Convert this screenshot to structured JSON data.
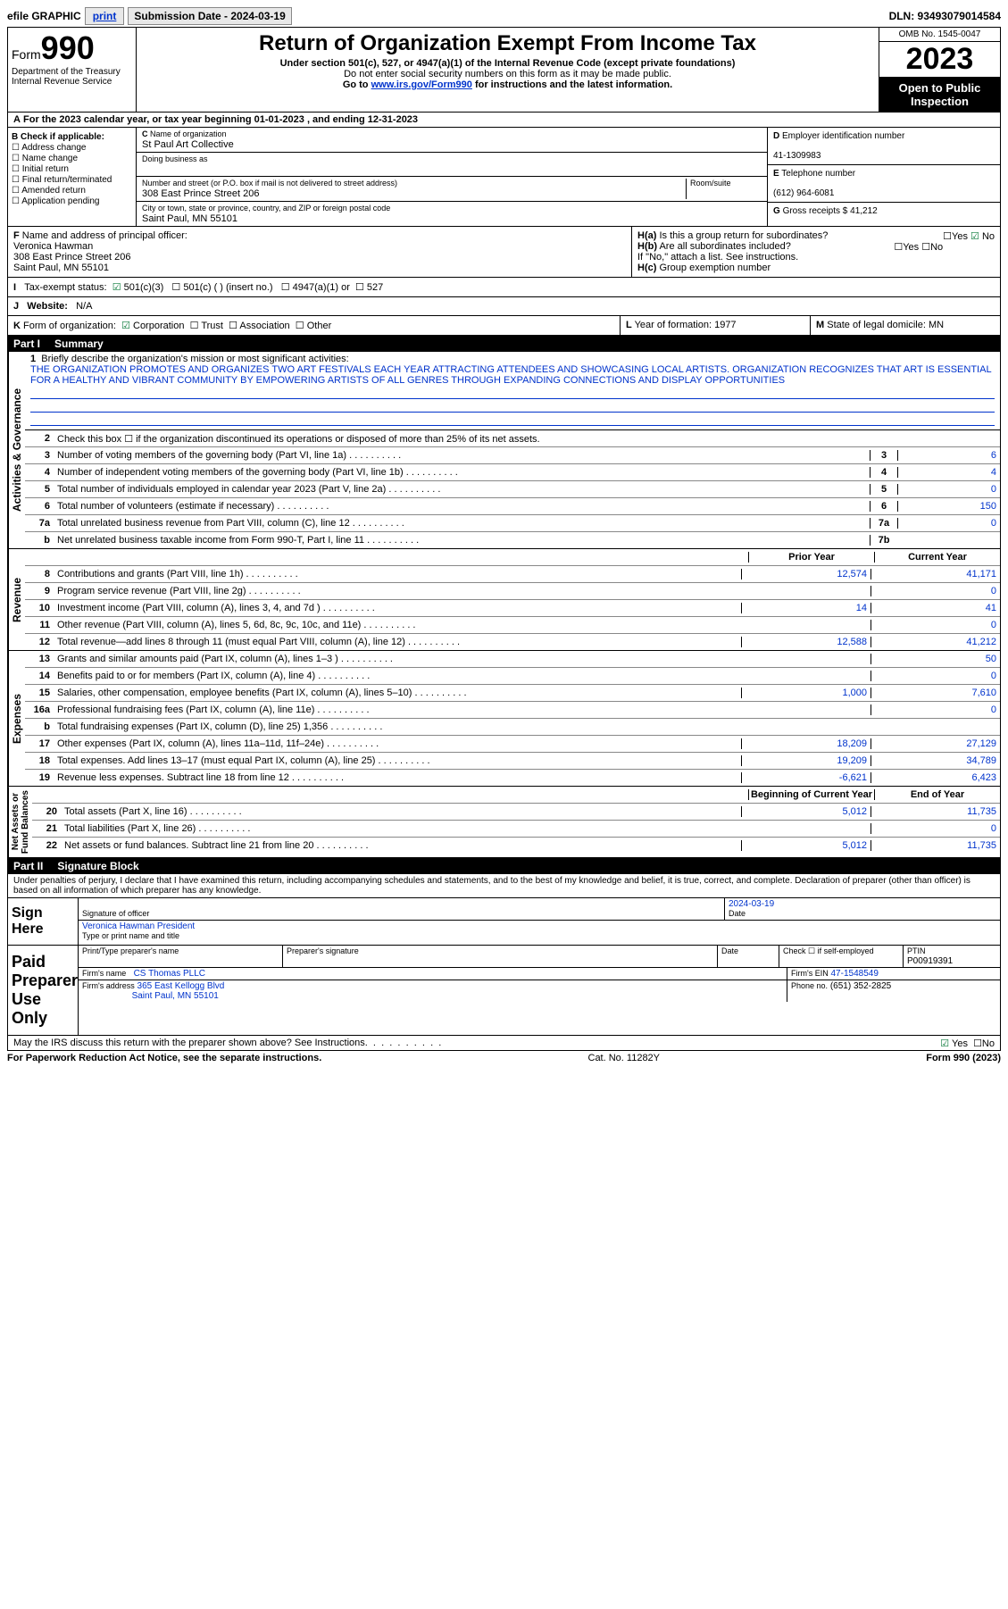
{
  "topbar": {
    "efile": "efile GRAPHIC",
    "print": "print",
    "sub_label": "Submission Date - 2024-03-19",
    "dln": "DLN: 93493079014584"
  },
  "header": {
    "form_word": "Form",
    "form_num": "990",
    "dept": "Department of the Treasury",
    "irs": "Internal Revenue Service",
    "title": "Return of Organization Exempt From Income Tax",
    "sub1": "Under section 501(c), 527, or 4947(a)(1) of the Internal Revenue Code (except private foundations)",
    "sub2": "Do not enter social security numbers on this form as it may be made public.",
    "sub3_pre": "Go to ",
    "sub3_link": "www.irs.gov/Form990",
    "sub3_post": " for instructions and the latest information.",
    "omb": "OMB No. 1545-0047",
    "year": "2023",
    "open": "Open to Public Inspection"
  },
  "A": {
    "text": "For the 2023 calendar year, or tax year beginning 01-01-2023   , and ending 12-31-2023"
  },
  "B": {
    "hdr": "Check if applicable:",
    "opts": [
      "Address change",
      "Name change",
      "Initial return",
      "Final return/terminated",
      "Amended return",
      "Application pending"
    ]
  },
  "C": {
    "name_lbl": "Name of organization",
    "name": "St Paul Art Collective",
    "dba_lbl": "Doing business as",
    "dba": "",
    "addr_lbl": "Number and street (or P.O. box if mail is not delivered to street address)",
    "room_lbl": "Room/suite",
    "addr": "308 East Prince Street 206",
    "city_lbl": "City or town, state or province, country, and ZIP or foreign postal code",
    "city": "Saint Paul, MN  55101"
  },
  "D": {
    "lbl": "Employer identification number",
    "val": "41-1309983"
  },
  "E": {
    "lbl": "Telephone number",
    "val": "(612) 964-6081"
  },
  "G": {
    "lbl": "Gross receipts $",
    "val": "41,212"
  },
  "F": {
    "lbl": "Name and address of principal officer:",
    "name": "Veronica Hawman",
    "addr1": "308 East Prince Street 206",
    "addr2": "Saint Paul, MN  55101"
  },
  "H": {
    "a": "Is this a group return for subordinates?",
    "a_ans": "No",
    "b": "Are all subordinates included?",
    "b_note": "If \"No,\" attach a list. See instructions.",
    "c": "Group exemption number"
  },
  "I": {
    "lbl": "Tax-exempt status:",
    "opt1": "501(c)(3)",
    "opt2": "501(c) (  ) (insert no.)",
    "opt3": "4947(a)(1) or",
    "opt4": "527"
  },
  "J": {
    "lbl": "Website:",
    "val": "N/A"
  },
  "K": {
    "lbl": "Form of organization:",
    "o1": "Corporation",
    "o2": "Trust",
    "o3": "Association",
    "o4": "Other"
  },
  "L": {
    "lbl": "Year of formation:",
    "val": "1977"
  },
  "M": {
    "lbl": "State of legal domicile:",
    "val": "MN"
  },
  "part1": {
    "title": "Part I",
    "name": "Summary"
  },
  "mission": {
    "q": "Briefly describe the organization's mission or most significant activities:",
    "txt": "THE ORGANIZATION PROMOTES AND ORGANIZES TWO ART FESTIVALS EACH YEAR ATTRACTING ATTENDEES AND SHOWCASING LOCAL ARTISTS. ORGANIZATION RECOGNIZES THAT ART IS ESSENTIAL FOR A HEALTHY AND VIBRANT COMMUNITY BY EMPOWERING ARTISTS OF ALL GENRES THROUGH EXPANDING CONNECTIONS AND DISPLAY OPPORTUNITIES"
  },
  "gov": {
    "l2": "Check this box ☐ if the organization discontinued its operations or disposed of more than 25% of its net assets.",
    "rows": [
      {
        "n": "3",
        "t": "Number of voting members of the governing body (Part VI, line 1a)",
        "b": "3",
        "v": "6"
      },
      {
        "n": "4",
        "t": "Number of independent voting members of the governing body (Part VI, line 1b)",
        "b": "4",
        "v": "4"
      },
      {
        "n": "5",
        "t": "Total number of individuals employed in calendar year 2023 (Part V, line 2a)",
        "b": "5",
        "v": "0"
      },
      {
        "n": "6",
        "t": "Total number of volunteers (estimate if necessary)",
        "b": "6",
        "v": "150"
      },
      {
        "n": "7a",
        "t": "Total unrelated business revenue from Part VIII, column (C), line 12",
        "b": "7a",
        "v": "0"
      },
      {
        "n": "b",
        "t": "Net unrelated business taxable income from Form 990-T, Part I, line 11",
        "b": "7b",
        "v": ""
      }
    ]
  },
  "rev": {
    "hdr_prior": "Prior Year",
    "hdr_curr": "Current Year",
    "rows": [
      {
        "n": "8",
        "t": "Contributions and grants (Part VIII, line 1h)",
        "p": "12,574",
        "c": "41,171"
      },
      {
        "n": "9",
        "t": "Program service revenue (Part VIII, line 2g)",
        "p": "",
        "c": "0"
      },
      {
        "n": "10",
        "t": "Investment income (Part VIII, column (A), lines 3, 4, and 7d )",
        "p": "14",
        "c": "41"
      },
      {
        "n": "11",
        "t": "Other revenue (Part VIII, column (A), lines 5, 6d, 8c, 9c, 10c, and 11e)",
        "p": "",
        "c": "0"
      },
      {
        "n": "12",
        "t": "Total revenue—add lines 8 through 11 (must equal Part VIII, column (A), line 12)",
        "p": "12,588",
        "c": "41,212"
      }
    ]
  },
  "exp": {
    "rows": [
      {
        "n": "13",
        "t": "Grants and similar amounts paid (Part IX, column (A), lines 1–3 )",
        "p": "",
        "c": "50"
      },
      {
        "n": "14",
        "t": "Benefits paid to or for members (Part IX, column (A), line 4)",
        "p": "",
        "c": "0"
      },
      {
        "n": "15",
        "t": "Salaries, other compensation, employee benefits (Part IX, column (A), lines 5–10)",
        "p": "1,000",
        "c": "7,610"
      },
      {
        "n": "16a",
        "t": "Professional fundraising fees (Part IX, column (A), line 11e)",
        "p": "",
        "c": "0"
      },
      {
        "n": "b",
        "t": "Total fundraising expenses (Part IX, column (D), line 25) 1,356",
        "p": "—",
        "c": "—"
      },
      {
        "n": "17",
        "t": "Other expenses (Part IX, column (A), lines 11a–11d, 11f–24e)",
        "p": "18,209",
        "c": "27,129"
      },
      {
        "n": "18",
        "t": "Total expenses. Add lines 13–17 (must equal Part IX, column (A), line 25)",
        "p": "19,209",
        "c": "34,789"
      },
      {
        "n": "19",
        "t": "Revenue less expenses. Subtract line 18 from line 12",
        "p": "-6,621",
        "c": "6,423"
      }
    ]
  },
  "net": {
    "hdr_beg": "Beginning of Current Year",
    "hdr_end": "End of Year",
    "rows": [
      {
        "n": "20",
        "t": "Total assets (Part X, line 16)",
        "p": "5,012",
        "c": "11,735"
      },
      {
        "n": "21",
        "t": "Total liabilities (Part X, line 26)",
        "p": "",
        "c": "0"
      },
      {
        "n": "22",
        "t": "Net assets or fund balances. Subtract line 21 from line 20",
        "p": "5,012",
        "c": "11,735"
      }
    ]
  },
  "part2": {
    "title": "Part II",
    "name": "Signature Block"
  },
  "decl": "Under penalties of perjury, I declare that I have examined this return, including accompanying schedules and statements, and to the best of my knowledge and belief, it is true, correct, and complete. Declaration of preparer (other than officer) is based on all information of which preparer has any knowledge.",
  "sign": {
    "here": "Sign Here",
    "sig_officer": "Signature of officer",
    "officer": "Veronica Hawman  President",
    "type_lbl": "Type or print name and title",
    "date_lbl": "Date",
    "date": "2024-03-19"
  },
  "paid": {
    "title": "Paid Preparer Use Only",
    "h1": "Print/Type preparer's name",
    "h2": "Preparer's signature",
    "h3": "Date",
    "h4_chk": "Check ☐ if self-employed",
    "h5": "PTIN",
    "ptin": "P00919391",
    "firm_lbl": "Firm's name",
    "firm": "CS Thomas PLLC",
    "ein_lbl": "Firm's EIN",
    "ein": "47-1548549",
    "addr_lbl": "Firm's address",
    "addr1": "365 East Kellogg Blvd",
    "addr2": "Saint Paul, MN  55101",
    "phone_lbl": "Phone no.",
    "phone": "(651) 352-2825"
  },
  "discuss": "May the IRS discuss this return with the preparer shown above? See Instructions.",
  "footer": {
    "l": "For Paperwork Reduction Act Notice, see the separate instructions.",
    "m": "Cat. No. 11282Y",
    "r": "Form 990 (2023)"
  }
}
